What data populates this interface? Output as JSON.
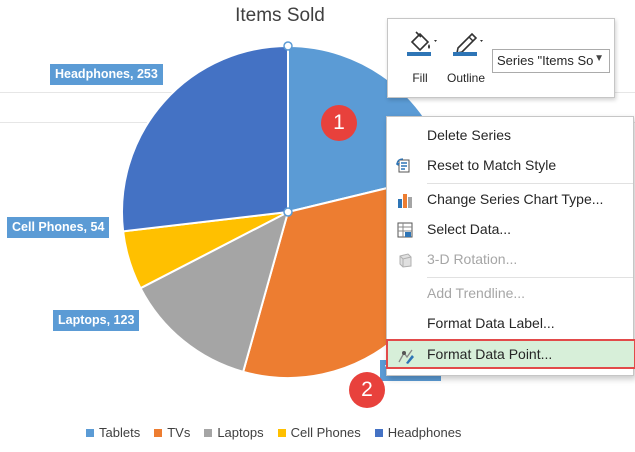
{
  "chart_data": {
    "type": "pie",
    "title": "Items Sold",
    "categories": [
      "Tablets",
      "TVs",
      "Laptops",
      "Cell Phones",
      "Headphones"
    ],
    "values": [
      200,
      312,
      123,
      54,
      253
    ],
    "colors": [
      "#5b9bd5",
      "#ed7d31",
      "#a5a5a5",
      "#ffc000",
      "#4472c4"
    ],
    "data_labels": {
      "headphones": "Headphones, 253",
      "cell_phones": "Cell Phones, 54",
      "laptops": "Laptops, 123",
      "tvs_partial": "TVs, 312"
    },
    "legend_position": "bottom",
    "legend": [
      "Tablets",
      "TVs",
      "Laptops",
      "Cell Phones",
      "Headphones"
    ]
  },
  "mini_toolbar": {
    "fill_label": "Fill",
    "outline_label": "Outline",
    "series_select_value": "Series \"Items So"
  },
  "context_menu": {
    "items": [
      {
        "label": "Delete Series",
        "icon": "delete-series-icon",
        "disabled": false
      },
      {
        "label": "Reset to Match Style",
        "icon": "reset-style-icon",
        "disabled": false
      },
      {
        "label": "Change Series Chart Type...",
        "icon": "chart-type-icon",
        "disabled": false
      },
      {
        "label": "Select Data...",
        "icon": "select-data-icon",
        "disabled": false
      },
      {
        "label": "3-D Rotation...",
        "icon": "rotation-3d-icon",
        "disabled": true
      },
      {
        "label": "Add Trendline...",
        "icon": "",
        "disabled": true
      },
      {
        "label": "Format Data Label...",
        "icon": "",
        "disabled": false
      },
      {
        "label": "Format Data Point...",
        "icon": "format-data-point-icon",
        "disabled": false
      }
    ]
  },
  "annotations": {
    "step1": "1",
    "step2": "2"
  }
}
